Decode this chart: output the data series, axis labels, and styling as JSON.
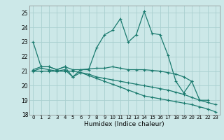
{
  "xlabel": "Humidex (Indice chaleur)",
  "bg_color": "#cce8e8",
  "grid_color": "#aad0d0",
  "line_color": "#1a7a6e",
  "xlim": [
    -0.5,
    23.5
  ],
  "ylim": [
    18,
    25.5
  ],
  "yticks": [
    18,
    19,
    20,
    21,
    22,
    23,
    24,
    25
  ],
  "xticks": [
    0,
    1,
    2,
    3,
    4,
    5,
    6,
    7,
    8,
    9,
    10,
    11,
    12,
    13,
    14,
    15,
    16,
    17,
    18,
    19,
    20,
    21,
    22,
    23
  ],
  "series1_x": [
    0,
    1,
    2,
    3,
    4,
    5,
    6,
    7,
    8,
    9,
    10,
    11,
    12,
    13,
    14,
    15,
    16,
    17,
    18,
    19,
    20,
    21,
    22
  ],
  "series1_y": [
    23.0,
    21.3,
    21.3,
    21.1,
    21.3,
    20.6,
    21.1,
    21.1,
    22.6,
    23.5,
    23.8,
    24.6,
    23.0,
    23.5,
    25.1,
    23.6,
    23.5,
    22.1,
    20.3,
    19.5,
    20.3,
    19.0,
    19.0
  ],
  "series2_x": [
    0,
    1,
    2,
    3,
    4,
    5,
    6,
    7,
    8,
    9,
    10,
    11,
    12,
    13,
    14,
    15,
    16,
    17,
    18,
    19,
    20
  ],
  "series2_y": [
    21.1,
    21.3,
    21.3,
    21.1,
    21.3,
    21.1,
    21.1,
    21.15,
    21.2,
    21.2,
    21.3,
    21.2,
    21.1,
    21.1,
    21.1,
    21.05,
    21.0,
    20.9,
    20.8,
    20.6,
    20.3
  ],
  "series3_x": [
    0,
    1,
    2,
    3,
    4,
    5,
    6,
    7,
    8,
    9,
    10,
    11,
    12,
    13,
    14,
    15,
    16,
    17,
    18,
    19,
    20,
    21,
    22,
    23
  ],
  "series3_y": [
    21.0,
    21.2,
    21.1,
    21.0,
    21.1,
    20.6,
    20.9,
    20.8,
    20.6,
    20.5,
    20.4,
    20.3,
    20.2,
    20.1,
    20.0,
    19.9,
    19.8,
    19.7,
    19.55,
    19.4,
    19.2,
    19.0,
    18.85,
    18.7
  ],
  "series4_x": [
    0,
    1,
    2,
    3,
    4,
    5,
    6,
    7,
    8,
    9,
    10,
    11,
    12,
    13,
    14,
    15,
    16,
    17,
    18,
    19,
    20,
    21,
    22,
    23
  ],
  "series4_y": [
    21.0,
    21.0,
    21.0,
    21.0,
    21.0,
    21.0,
    20.9,
    20.7,
    20.5,
    20.3,
    20.1,
    19.9,
    19.7,
    19.5,
    19.3,
    19.2,
    19.1,
    19.0,
    18.9,
    18.8,
    18.7,
    18.55,
    18.4,
    18.2
  ]
}
